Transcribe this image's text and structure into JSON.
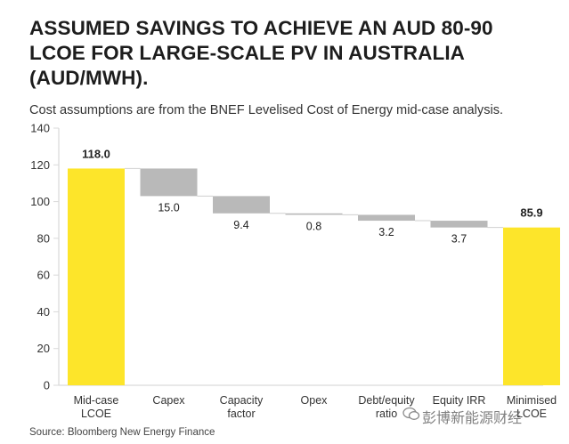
{
  "header": {
    "title_lines": [
      "ASSUMED SAVINGS TO ACHIEVE AN AUD 80-90",
      "LCOE FOR LARGE-SCALE PV IN AUSTRALIA",
      "(AUD/MWH)."
    ],
    "subtitle": "Cost assumptions are from the BNEF Levelised Cost of Energy mid-case analysis."
  },
  "footer": {
    "source": "Source:  Bloomberg New Energy Finance",
    "watermark": "彭博新能源财经"
  },
  "colors": {
    "total_bar": "#fde52a",
    "step_bar": "#b9b9b9",
    "axis": "#d9d9d9",
    "connector": "#cfcfcf"
  },
  "chart_data": {
    "type": "waterfall",
    "title": "ASSUMED SAVINGS TO ACHIEVE AN AUD 80-90 LCOE FOR LARGE-SCALE PV IN AUSTRALIA (AUD/MWH).",
    "ylim": [
      0,
      140
    ],
    "yticks": [
      0,
      20,
      40,
      60,
      80,
      100,
      120,
      140
    ],
    "categories": [
      [
        "Mid-case",
        "LCOE"
      ],
      [
        "Capex"
      ],
      [
        "Capacity",
        "factor"
      ],
      [
        "Opex"
      ],
      [
        "Debt/equity",
        "ratio"
      ],
      [
        "Equity IRR"
      ],
      [
        "Minimised",
        "LCOE"
      ]
    ],
    "bars": [
      {
        "kind": "total",
        "value": 118.0,
        "label": "118.0"
      },
      {
        "kind": "decrease",
        "value": 15.0,
        "label": "15.0"
      },
      {
        "kind": "decrease",
        "value": 9.4,
        "label": "9.4"
      },
      {
        "kind": "decrease",
        "value": 0.8,
        "label": "0.8"
      },
      {
        "kind": "decrease",
        "value": 3.2,
        "label": "3.2"
      },
      {
        "kind": "decrease",
        "value": 3.7,
        "label": "3.7"
      },
      {
        "kind": "total",
        "value": 85.9,
        "label": "85.9"
      }
    ]
  }
}
